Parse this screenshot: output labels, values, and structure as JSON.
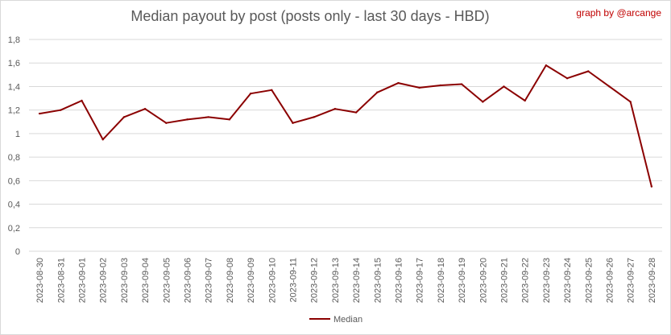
{
  "chart_data": {
    "type": "line",
    "title": "Median payout by post (posts only - last 30 days - HBD)",
    "credit": "graph by @arcange",
    "xlabel": "",
    "ylabel": "",
    "ylim": [
      0,
      1.8
    ],
    "y_ticks": [
      "0",
      "0,2",
      "0,4",
      "0,6",
      "0,8",
      "1",
      "1,2",
      "1,4",
      "1,6",
      "1,8"
    ],
    "grid": true,
    "legend_position": "bottom",
    "x": [
      "2023-08-30",
      "2023-08-31",
      "2023-09-01",
      "2023-09-02",
      "2023-09-03",
      "2023-09-04",
      "2023-09-05",
      "2023-09-06",
      "2023-09-07",
      "2023-09-08",
      "2023-09-09",
      "2023-09-10",
      "2023-09-11",
      "2023-09-12",
      "2023-09-13",
      "2023-09-14",
      "2023-09-15",
      "2023-09-16",
      "2023-09-17",
      "2023-09-18",
      "2023-09-19",
      "2023-09-20",
      "2023-09-21",
      "2023-09-22",
      "2023-09-23",
      "2023-09-24",
      "2023-09-25",
      "2023-09-26",
      "2023-09-27",
      "2023-09-28"
    ],
    "series": [
      {
        "name": "Median",
        "color": "#8b0000",
        "values": [
          1.17,
          1.2,
          1.28,
          0.95,
          1.14,
          1.21,
          1.09,
          1.12,
          1.14,
          1.12,
          1.34,
          1.37,
          1.09,
          1.14,
          1.21,
          1.18,
          1.35,
          1.43,
          1.39,
          1.41,
          1.42,
          1.27,
          1.4,
          1.28,
          1.58,
          1.47,
          1.53,
          1.4,
          1.27,
          0.55
        ]
      }
    ]
  }
}
